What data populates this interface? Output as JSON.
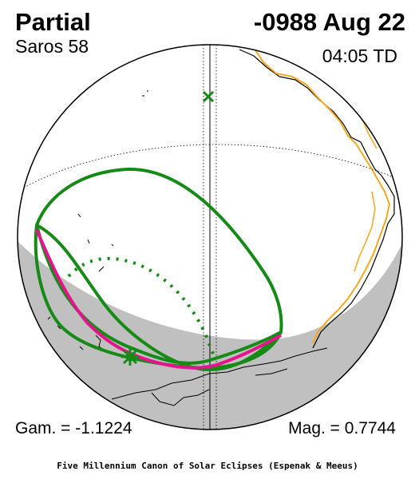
{
  "header": {
    "eclipse_type": "Partial",
    "date": "-0988 Aug 22",
    "saros": "Saros  58",
    "time": "04:05 TD"
  },
  "footer": {
    "gamma": "Gam. = -1.1224",
    "magnitude": "Mag. = 0.7744",
    "credit": "Five Millennium Canon of Solar Eclipses (Espenak & Meeus)"
  },
  "map": {
    "colors": {
      "globe_outline": "#000000",
      "night_shade": "#c0c0c0",
      "coastline": "#000000",
      "political_boundary": "#f5a81c",
      "penumbra_limit": "#168a16",
      "max_eclipse_curve": "#e6148c",
      "sub_solar_marker": "#168a16"
    },
    "markers": {
      "sub_solar": "x-marker",
      "greatest_eclipse": "star-marker"
    }
  }
}
